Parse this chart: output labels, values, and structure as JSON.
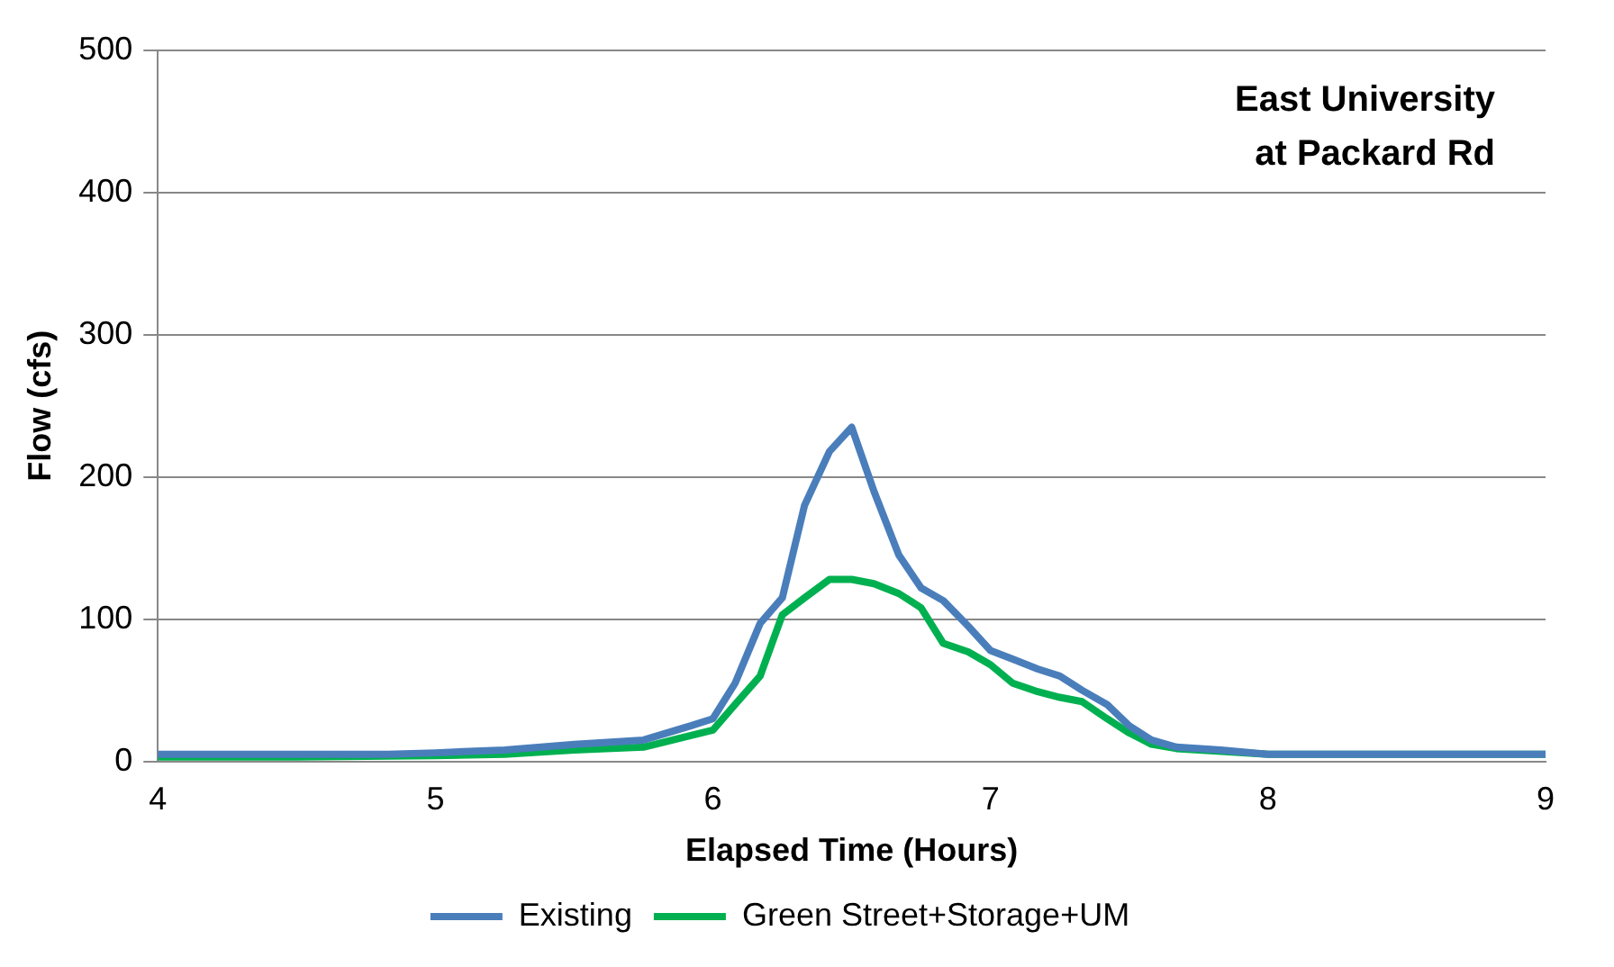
{
  "chart_data": {
    "type": "line",
    "xlabel": "Elapsed Time (Hours)",
    "ylabel": "Flow (cfs)",
    "annotations": [
      "East University\nat Packard Rd"
    ],
    "xlim": [
      4,
      9
    ],
    "xticks": [
      4,
      5,
      6,
      7,
      8,
      9
    ],
    "ylim": [
      0,
      500
    ],
    "yticks": [
      0,
      100,
      200,
      300,
      400,
      500
    ],
    "grid": "y",
    "legend": "bottom",
    "marker": "none",
    "line_style": "solid",
    "series": [
      {
        "name": "Existing",
        "color": "#4a7ebb",
        "x": [
          4,
          4.5,
          4.83,
          5,
          5.25,
          5.5,
          5.75,
          5.92,
          6,
          6.08,
          6.17,
          6.25,
          6.33,
          6.42,
          6.5,
          6.58,
          6.67,
          6.75,
          6.83,
          6.92,
          7,
          7.08,
          7.17,
          7.25,
          7.33,
          7.42,
          7.5,
          7.58,
          7.67,
          7.83,
          8,
          9
        ],
        "values": [
          5,
          5,
          5,
          6,
          8,
          12,
          15,
          25,
          30,
          55,
          97,
          115,
          180,
          218,
          235,
          190,
          145,
          122,
          113,
          95,
          78,
          72,
          65,
          60,
          50,
          40,
          25,
          15,
          10,
          8,
          5,
          5
        ]
      },
      {
        "name": "Green Street+Storage+UM",
        "color": "#00b050",
        "x": [
          4,
          4.5,
          5,
          5.25,
          5.5,
          5.75,
          6,
          6.08,
          6.17,
          6.25,
          6.33,
          6.42,
          6.5,
          6.58,
          6.67,
          6.75,
          6.83,
          6.92,
          7,
          7.08,
          7.17,
          7.25,
          7.33,
          7.42,
          7.5,
          7.58,
          7.67,
          7.83,
          8,
          9
        ],
        "values": [
          3,
          3,
          4,
          5,
          8,
          10,
          22,
          40,
          60,
          103,
          115,
          128,
          128,
          125,
          118,
          108,
          83,
          77,
          68,
          55,
          49,
          45,
          42,
          30,
          20,
          12,
          9,
          7,
          5,
          5
        ]
      }
    ]
  }
}
